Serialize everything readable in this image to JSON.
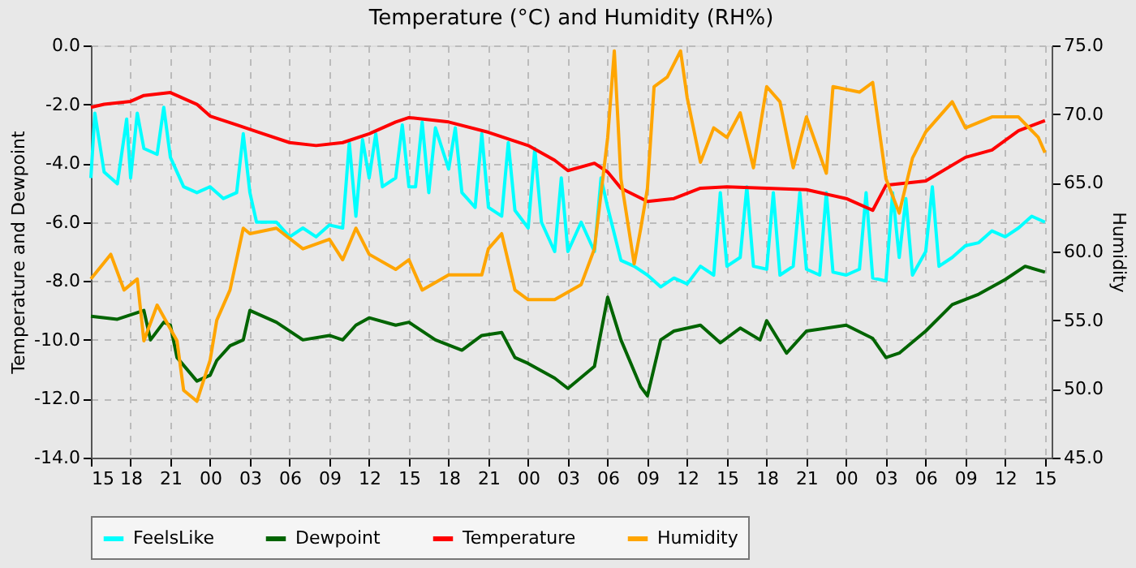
{
  "chart_data": {
    "type": "line",
    "title": "Temperature (°C) and Humidity (RH%)",
    "ylabel": "Temperature and Dewpoint",
    "y2label": "Humidity",
    "xlim": [
      15,
      87.5
    ],
    "xticks": [
      15,
      18,
      21,
      {
        "value": 24,
        "label": "00"
      },
      {
        "value": 27,
        "label": "03"
      },
      {
        "value": 30,
        "label": "06"
      },
      {
        "value": 33,
        "label": "09"
      },
      {
        "value": 36,
        "label": "12"
      },
      {
        "value": 39,
        "label": "15"
      },
      {
        "value": 42,
        "label": "18"
      },
      {
        "value": 45,
        "label": "21"
      },
      {
        "value": 48,
        "label": "00"
      },
      {
        "value": 51,
        "label": "03"
      },
      {
        "value": 54,
        "label": "06"
      },
      {
        "value": 57,
        "label": "09"
      },
      {
        "value": 60,
        "label": "12"
      },
      {
        "value": 63,
        "label": "15"
      },
      {
        "value": 66,
        "label": "18"
      },
      {
        "value": 69,
        "label": "21"
      },
      {
        "value": 72,
        "label": "00"
      },
      {
        "value": 75,
        "label": "03"
      },
      {
        "value": 78,
        "label": "06"
      },
      {
        "value": 81,
        "label": "09"
      },
      {
        "value": 84,
        "label": "12"
      },
      {
        "value": 87,
        "label": "15"
      }
    ],
    "ylim": [
      -14,
      0
    ],
    "yticks": [
      {
        "value": -14,
        "label": "-14.0"
      },
      {
        "value": -12,
        "label": "-12.0"
      },
      {
        "value": -10,
        "label": "-10.0"
      },
      {
        "value": -8,
        "label": "-8.0"
      },
      {
        "value": -6,
        "label": "-6.0"
      },
      {
        "value": -4,
        "label": "-4.0"
      },
      {
        "value": -2,
        "label": "-2.0"
      },
      {
        "value": 0,
        "label": "0.0"
      }
    ],
    "y2lim": [
      45,
      75
    ],
    "y2ticks": [
      {
        "value": 45,
        "label": "45.0"
      },
      {
        "value": 50,
        "label": "50.0"
      },
      {
        "value": 55,
        "label": "55.0"
      },
      {
        "value": 60,
        "label": "60.0"
      },
      {
        "value": 65,
        "label": "65.0"
      },
      {
        "value": 70,
        "label": "70.0"
      },
      {
        "value": 75,
        "label": "75.0"
      }
    ],
    "grid": true,
    "legend": "bottom",
    "line_style": "solid",
    "series": [
      {
        "name": "FeelsLike",
        "color": "#00ffff",
        "x": [
          15,
          15.3,
          16,
          17,
          17.7,
          18,
          18.5,
          19,
          20,
          20.5,
          21,
          22,
          23,
          24,
          25,
          26,
          26.5,
          27,
          27.5,
          29,
          30,
          31,
          32,
          33,
          34,
          34.5,
          35,
          35.5,
          36,
          36.5,
          37,
          38,
          38.5,
          39,
          39.5,
          40,
          40.5,
          41,
          42,
          42.5,
          43,
          44,
          44.5,
          45,
          46,
          46.5,
          47,
          48,
          48.5,
          49,
          50,
          50.5,
          51,
          52,
          53,
          53.5,
          54,
          55,
          56,
          57,
          58,
          59,
          60,
          61,
          62,
          62.5,
          63,
          64,
          64.5,
          65,
          66,
          66.5,
          67,
          68,
          68.5,
          69,
          70,
          70.5,
          71,
          72,
          73,
          73.5,
          74,
          75,
          75.5,
          76,
          76.5,
          77,
          78,
          78.5,
          79,
          80,
          81,
          82,
          83,
          84,
          85,
          86,
          87
        ],
        "values": [
          -4.5,
          -2.3,
          -4.3,
          -4.7,
          -2.5,
          -4.5,
          -2.3,
          -3.5,
          -3.7,
          -2.1,
          -3.8,
          -4.8,
          -5.0,
          -4.8,
          -5.2,
          -5.0,
          -3.0,
          -5.0,
          -6.0,
          -6.0,
          -6.5,
          -6.2,
          -6.5,
          -6.1,
          -6.2,
          -3.3,
          -5.8,
          -3.2,
          -4.5,
          -3.0,
          -4.8,
          -4.5,
          -2.7,
          -4.8,
          -4.8,
          -2.6,
          -5.0,
          -2.8,
          -4.2,
          -2.8,
          -5.0,
          -5.5,
          -3.0,
          -5.5,
          -5.8,
          -3.3,
          -5.6,
          -6.2,
          -3.5,
          -6.0,
          -7.0,
          -4.5,
          -7.0,
          -6.0,
          -7.0,
          -4.5,
          -5.5,
          -7.3,
          -7.5,
          -7.8,
          -8.2,
          -7.9,
          -8.1,
          -7.5,
          -7.8,
          -5.0,
          -7.5,
          -7.2,
          -4.8,
          -7.5,
          -7.6,
          -5.0,
          -7.8,
          -7.5,
          -5.0,
          -7.6,
          -7.8,
          -5.0,
          -7.7,
          -7.8,
          -7.6,
          -5.0,
          -7.9,
          -8.0,
          -5.0,
          -7.2,
          -5.2,
          -7.8,
          -7.0,
          -4.8,
          -7.5,
          -7.2,
          -6.8,
          -6.7,
          -6.3,
          -6.5,
          -6.2,
          -5.8,
          -6.0
        ]
      },
      {
        "name": "Dewpoint",
        "color": "#006400",
        "x": [
          15,
          17,
          19,
          19.5,
          20.5,
          21,
          21.5,
          23,
          24,
          24.5,
          25.5,
          26.5,
          27,
          29,
          31,
          33,
          34,
          35,
          36,
          38,
          39,
          41,
          43,
          44.5,
          46,
          47,
          48,
          50,
          51,
          53,
          54,
          55,
          56.5,
          57,
          58,
          59,
          61,
          62.5,
          64,
          65.5,
          66,
          67.5,
          69,
          72,
          74,
          75,
          76,
          78,
          80,
          82,
          84,
          85.5,
          87
        ],
        "values": [
          -9.2,
          -9.3,
          -9.0,
          -10.0,
          -9.4,
          -9.5,
          -10.6,
          -11.4,
          -11.2,
          -10.7,
          -10.2,
          -10.0,
          -9.0,
          -9.4,
          -10.0,
          -9.85,
          -10.0,
          -9.5,
          -9.25,
          -9.5,
          -9.4,
          -10.0,
          -10.35,
          -9.85,
          -9.75,
          -10.6,
          -10.8,
          -11.3,
          -11.65,
          -10.9,
          -8.55,
          -10.0,
          -11.6,
          -11.9,
          -10.0,
          -9.7,
          -9.5,
          -10.1,
          -9.6,
          -10.0,
          -9.35,
          -10.45,
          -9.7,
          -9.5,
          -9.95,
          -10.6,
          -10.45,
          -9.7,
          -8.8,
          -8.45,
          -7.95,
          -7.5,
          -7.7
        ]
      },
      {
        "name": "Temperature",
        "color": "#ff0000",
        "x": [
          15,
          16,
          18,
          19,
          21,
          23,
          24,
          26,
          28,
          30,
          32,
          34,
          36,
          38,
          39,
          42,
          45,
          48,
          50,
          51,
          53,
          54,
          55,
          57,
          59,
          61,
          63,
          66,
          69,
          72,
          74,
          75,
          78,
          81,
          83,
          85,
          87
        ],
        "values": [
          -2.1,
          -2.0,
          -1.9,
          -1.7,
          -1.6,
          -2.0,
          -2.4,
          -2.7,
          -3.0,
          -3.3,
          -3.4,
          -3.3,
          -3.0,
          -2.6,
          -2.45,
          -2.6,
          -2.95,
          -3.4,
          -3.9,
          -4.25,
          -4.0,
          -4.3,
          -4.85,
          -5.3,
          -5.2,
          -4.85,
          -4.8,
          -4.85,
          -4.9,
          -5.2,
          -5.6,
          -4.75,
          -4.6,
          -3.8,
          -3.55,
          -2.9,
          -2.55
        ]
      },
      {
        "name": "Humidity",
        "color": "#ffa500",
        "axis": "y2",
        "x": [
          15,
          16.5,
          17.5,
          18.5,
          19,
          20,
          21.5,
          22,
          23,
          24,
          24.5,
          25.5,
          26.5,
          27,
          29,
          31,
          33,
          34,
          35,
          36,
          38,
          39,
          40,
          42,
          44.5,
          45,
          46,
          47,
          48,
          50,
          52,
          53,
          54,
          54.5,
          55,
          56,
          56.5,
          57,
          57.5,
          58.5,
          59.5,
          60,
          61,
          62,
          63,
          64,
          65,
          66,
          67,
          68,
          69,
          70.5,
          71,
          73,
          74,
          75,
          76,
          77,
          78,
          80,
          81,
          83,
          85,
          86.5,
          87
        ],
        "values": [
          58.0,
          59.8,
          57.2,
          58.0,
          53.5,
          56.1,
          53.5,
          49.9,
          49.1,
          52.1,
          55.0,
          57.2,
          61.7,
          61.3,
          61.7,
          60.2,
          60.9,
          59.4,
          61.7,
          59.8,
          58.7,
          59.4,
          57.2,
          58.3,
          58.3,
          60.2,
          61.3,
          57.2,
          56.5,
          56.5,
          57.6,
          60.2,
          68.3,
          74.6,
          65.3,
          59.1,
          61.7,
          64.6,
          72.0,
          72.7,
          74.6,
          71.2,
          66.5,
          69.0,
          68.3,
          70.1,
          66.1,
          72.0,
          70.9,
          66.1,
          69.8,
          65.7,
          72.0,
          71.6,
          72.3,
          65.3,
          62.8,
          66.8,
          68.7,
          70.9,
          69.0,
          69.8,
          69.8,
          68.3,
          67.2
        ]
      }
    ]
  }
}
